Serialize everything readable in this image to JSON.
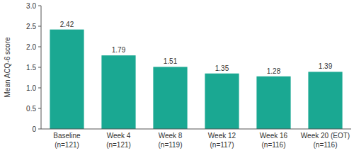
{
  "chart_data": {
    "type": "bar",
    "y_label": "Mean ACQ-6 score",
    "categories": [
      "Baseline\n(n=121)",
      "Week 4\n(n=121)",
      "Week 8\n(n=119)",
      "Week 12\n(n=117)",
      "Week 16\n(n=116)",
      "Week 20 (EOT)\n(n=116)"
    ],
    "values": [
      2.42,
      1.79,
      1.51,
      1.35,
      1.28,
      1.39
    ],
    "color": "#1aa892",
    "ylim": [
      0,
      3
    ],
    "yticks": [
      0,
      0.5,
      {
        "value": 1,
        "label": "1.0"
      },
      1.5,
      {
        "value": 2,
        "label": "2.0"
      },
      2.5,
      {
        "value": 3,
        "label": "3.0"
      }
    ],
    "grid": false,
    "data_labels": true
  }
}
